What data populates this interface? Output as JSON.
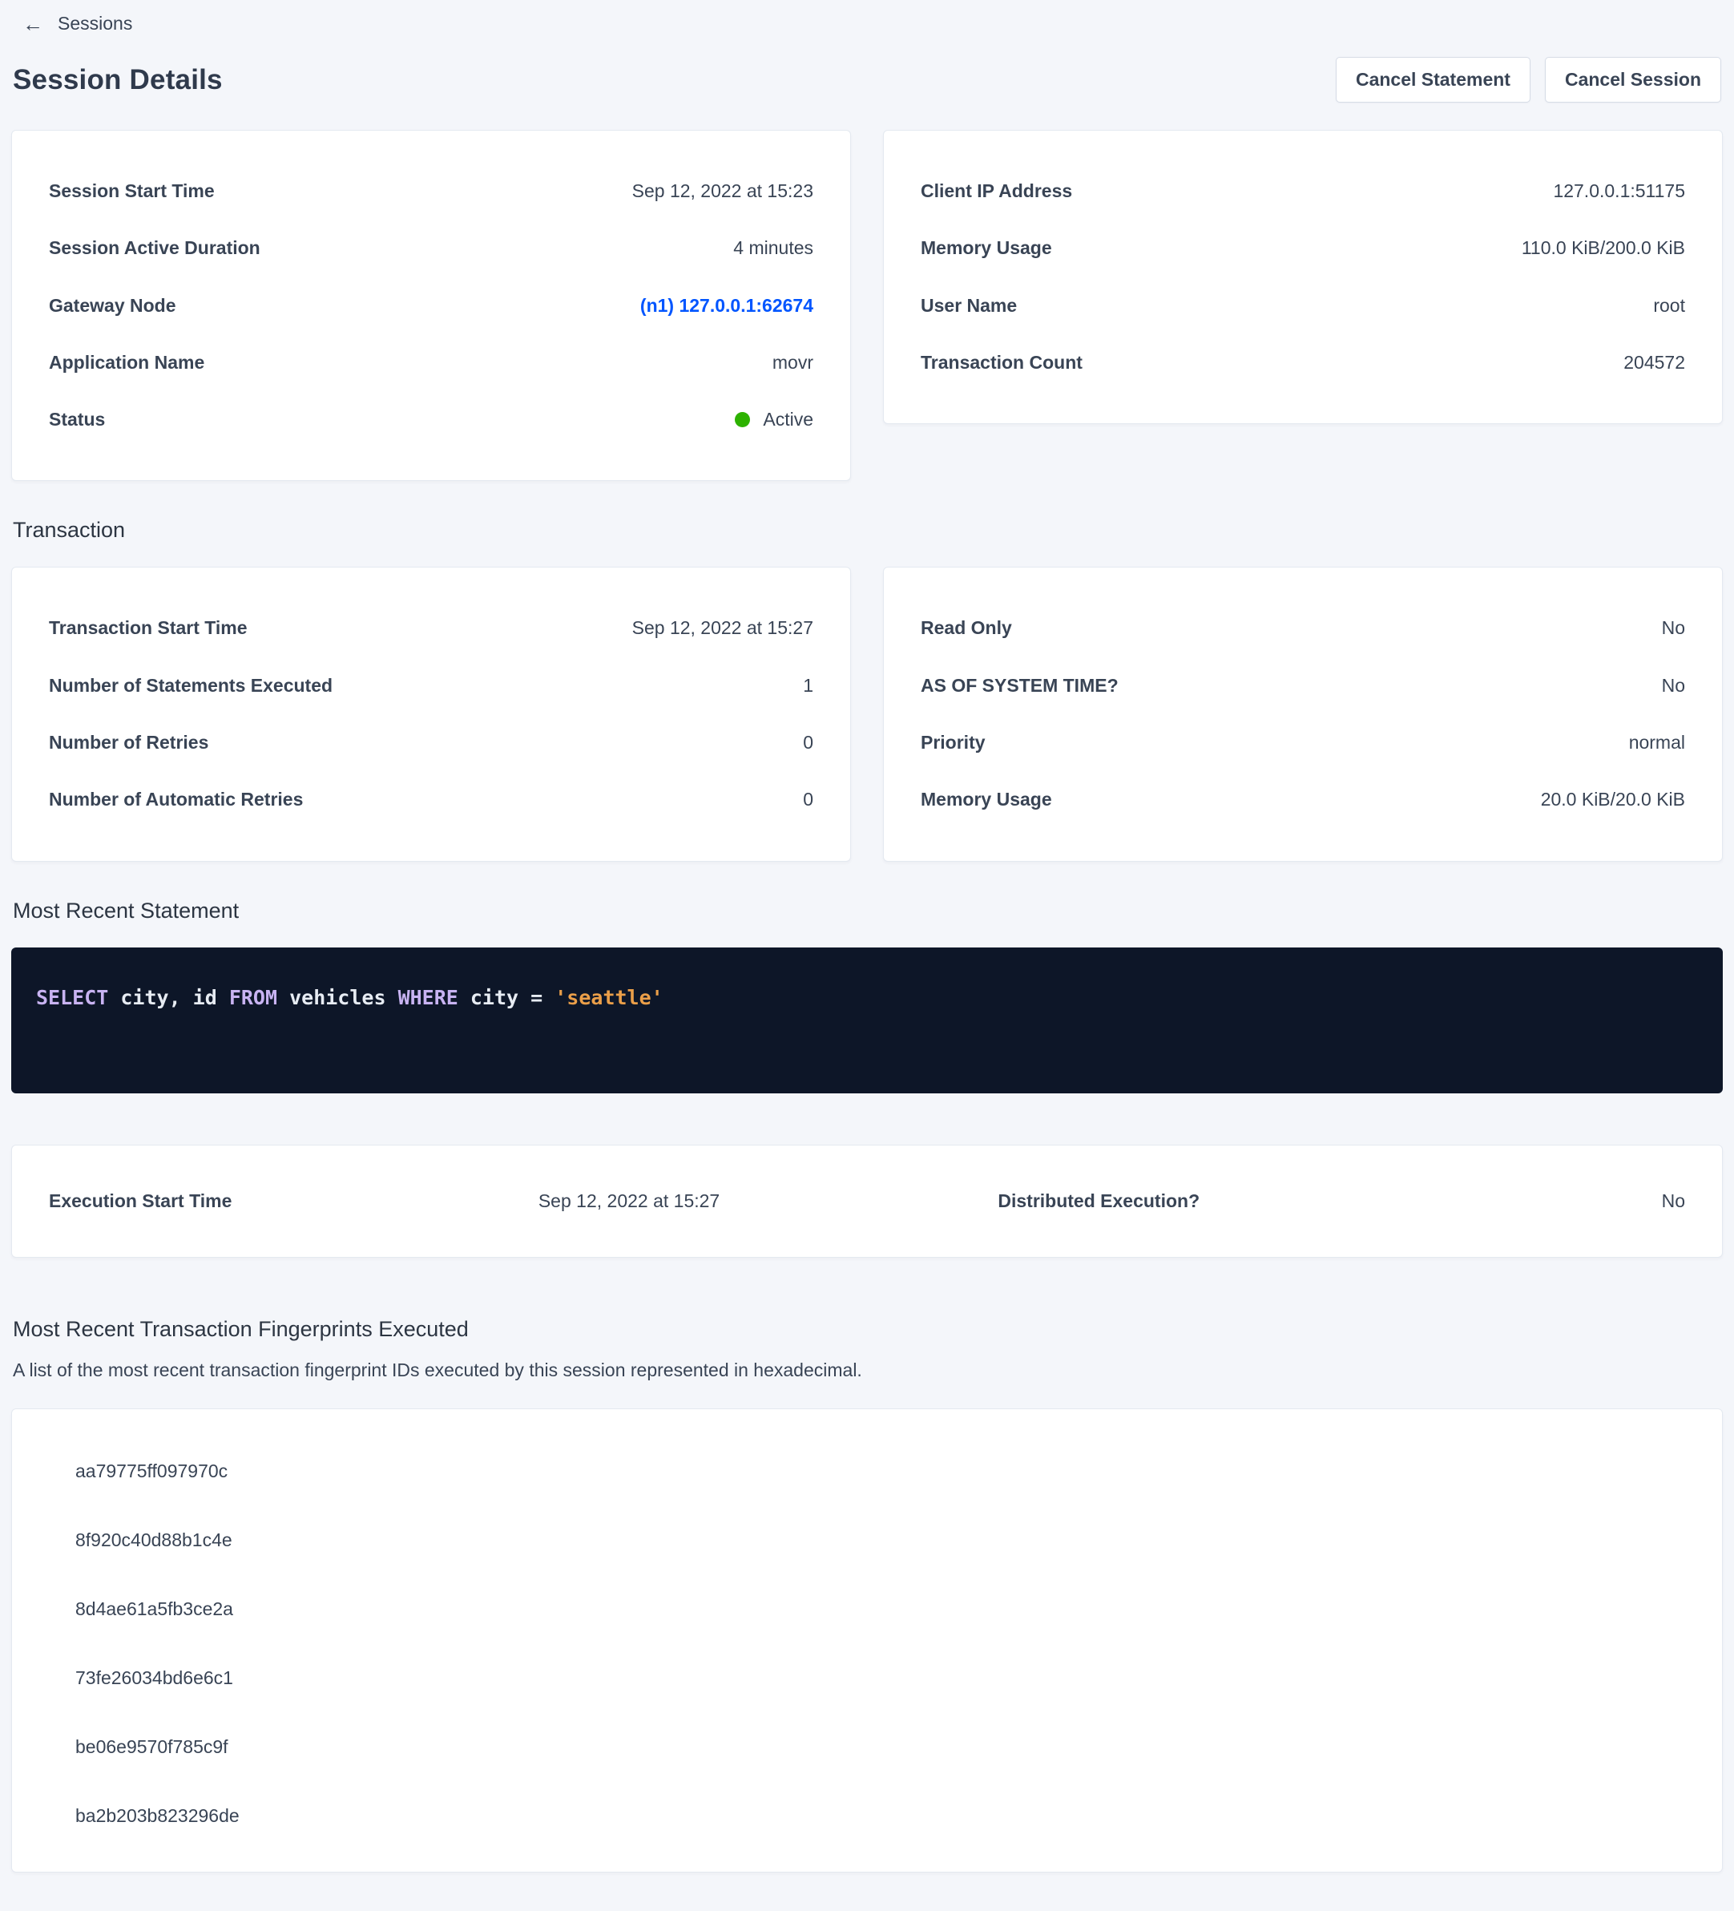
{
  "nav": {
    "back_label": "Sessions",
    "back_icon": "arrow-left-icon"
  },
  "header": {
    "title": "Session Details",
    "cancel_statement_label": "Cancel Statement",
    "cancel_session_label": "Cancel Session"
  },
  "session_info": {
    "left": [
      {
        "label": "Session Start Time",
        "value": "Sep 12, 2022 at 15:23"
      },
      {
        "label": "Session Active Duration",
        "value": "4 minutes"
      },
      {
        "label": "Gateway Node",
        "value": "(n1) 127.0.0.1:62674"
      },
      {
        "label": "Application Name",
        "value": "movr"
      },
      {
        "label": "Status",
        "value": "Active"
      }
    ],
    "right": [
      {
        "label": "Client IP Address",
        "value": "127.0.0.1:51175"
      },
      {
        "label": "Memory Usage",
        "value": "110.0 KiB/200.0 KiB"
      },
      {
        "label": "User Name",
        "value": "root"
      },
      {
        "label": "Transaction Count",
        "value": "204572"
      }
    ]
  },
  "transaction": {
    "heading": "Transaction",
    "left": [
      {
        "label": "Transaction Start Time",
        "value": "Sep 12, 2022 at 15:27"
      },
      {
        "label": "Number of Statements Executed",
        "value": "1"
      },
      {
        "label": "Number of Retries",
        "value": "0"
      },
      {
        "label": "Number of Automatic Retries",
        "value": "0"
      }
    ],
    "right": [
      {
        "label": "Read Only",
        "value": "No"
      },
      {
        "label": "AS OF SYSTEM TIME?",
        "value": "No"
      },
      {
        "label": "Priority",
        "value": "normal"
      },
      {
        "label": "Memory Usage",
        "value": "20.0 KiB/20.0 KiB"
      }
    ]
  },
  "statement": {
    "heading": "Most Recent Statement",
    "sql_tokens": [
      {
        "type": "keyword",
        "text": "SELECT"
      },
      {
        "type": "plain",
        "text": " city, id "
      },
      {
        "type": "keyword",
        "text": "FROM"
      },
      {
        "type": "plain",
        "text": " vehicles "
      },
      {
        "type": "keyword",
        "text": "WHERE"
      },
      {
        "type": "plain",
        "text": " city = "
      },
      {
        "type": "string",
        "text": "'seattle'"
      }
    ],
    "execution": {
      "start_label": "Execution Start Time",
      "start_value": "Sep 12, 2022 at 15:27",
      "distributed_label": "Distributed Execution?",
      "distributed_value": "No"
    }
  },
  "fingerprints": {
    "heading": "Most Recent Transaction Fingerprints Executed",
    "description": "A list of the most recent transaction fingerprint IDs executed by this session represented in hexadecimal.",
    "ids": [
      "aa79775ff097970c",
      "8f920c40d88b1c4e",
      "8d4ae61a5fb3ce2a",
      "73fe26034bd6e6c1",
      "be06e9570f785c9f",
      "ba2b203b823296de"
    ]
  },
  "colors": {
    "accent_link": "#0055ff",
    "status_active": "#2db200",
    "code_bg": "#0d1628",
    "code_keyword": "#c8b3f2",
    "code_string": "#eb9f49",
    "code_plain": "#e7ecf3"
  }
}
